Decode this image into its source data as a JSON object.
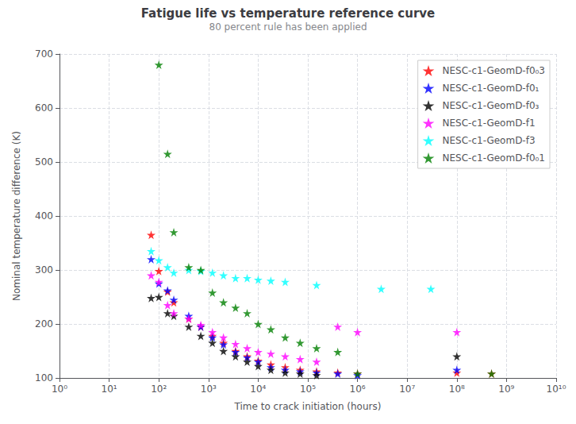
{
  "chart_data": {
    "type": "scatter",
    "title": "Fatigue life vs temperature reference curve",
    "subtitle": "80 percent rule has been applied",
    "xlabel": "Time to crack initiation (hours)",
    "ylabel": "Nominal temperature difference (K)",
    "log": "x",
    "xlim": [
      1,
      10000000000
    ],
    "xticks": [
      {
        "value": 1,
        "label": "10⁰"
      },
      {
        "value": 10,
        "label": "10¹"
      },
      {
        "value": 100,
        "label": "10²"
      },
      {
        "value": 1000,
        "label": "10³"
      },
      {
        "value": 10000,
        "label": "10⁴"
      },
      {
        "value": 100000,
        "label": "10⁵"
      },
      {
        "value": 1000000,
        "label": "10⁶"
      },
      {
        "value": 10000000,
        "label": "10⁷"
      },
      {
        "value": 100000000,
        "label": "10⁸"
      },
      {
        "value": 1000000000,
        "label": "10⁹"
      },
      {
        "value": 10000000000,
        "label": "10¹⁰"
      }
    ],
    "ylim": [
      100,
      700
    ],
    "yticks": [
      100,
      200,
      300,
      400,
      500,
      600,
      700
    ],
    "grid": true,
    "legend": "top-right",
    "marker": "star",
    "series": [
      {
        "name": "NESC-c1-GeomD-f0₀3",
        "color": "red",
        "x": [
          70,
          100,
          150,
          200,
          400,
          700,
          1200,
          2000,
          3500,
          6000,
          10000,
          18000,
          35000,
          70000,
          150000,
          400000,
          1000000,
          100000000,
          500000000
        ],
        "values": [
          365,
          298,
          260,
          240,
          210,
          195,
          178,
          165,
          150,
          140,
          132,
          125,
          120,
          115,
          112,
          110,
          108,
          110,
          108
        ]
      },
      {
        "name": "NESC-c1-GeomD-f0₁",
        "color": "blue",
        "x": [
          70,
          100,
          150,
          200,
          400,
          700,
          1200,
          2000,
          3500,
          6000,
          10000,
          18000,
          35000,
          70000,
          150000,
          400000,
          1000000,
          100000000
        ],
        "values": [
          320,
          275,
          262,
          245,
          215,
          195,
          175,
          162,
          148,
          138,
          130,
          120,
          115,
          112,
          110,
          108,
          105,
          115
        ]
      },
      {
        "name": "NESC-c1-GeomD-f0₃",
        "color": "black",
        "x": [
          70,
          100,
          150,
          200,
          400,
          700,
          1200,
          2000,
          3500,
          6000,
          10000,
          18000,
          35000,
          70000,
          150000,
          100000000
        ],
        "values": [
          248,
          250,
          220,
          215,
          195,
          178,
          165,
          150,
          140,
          130,
          122,
          115,
          110,
          108,
          105,
          140
        ]
      },
      {
        "name": "NESC-c1-GeomD-f1",
        "color": "magenta",
        "x": [
          70,
          100,
          150,
          200,
          400,
          700,
          1200,
          2000,
          3500,
          6000,
          10000,
          18000,
          35000,
          70000,
          150000,
          400000,
          1000000,
          100000000
        ],
        "values": [
          290,
          278,
          235,
          220,
          210,
          198,
          185,
          175,
          163,
          155,
          148,
          145,
          140,
          135,
          130,
          195,
          185,
          185
        ]
      },
      {
        "name": "NESC-c1-GeomD-f3",
        "color": "cyan",
        "x": [
          70,
          100,
          150,
          200,
          400,
          700,
          1200,
          2000,
          3500,
          6000,
          10000,
          18000,
          35000,
          150000,
          3000000,
          30000000
        ],
        "values": [
          335,
          318,
          305,
          295,
          300,
          298,
          295,
          290,
          285,
          285,
          282,
          280,
          278,
          272,
          265,
          265
        ]
      },
      {
        "name": "NESC-c1-GeomD-f0₀1",
        "color": "green",
        "x": [
          100,
          150,
          200,
          400,
          700,
          1200,
          2000,
          3500,
          6000,
          10000,
          18000,
          35000,
          70000,
          150000,
          400000,
          1000000,
          500000000
        ],
        "values": [
          680,
          515,
          370,
          305,
          300,
          258,
          240,
          230,
          220,
          200,
          190,
          175,
          165,
          155,
          148,
          108,
          108
        ]
      }
    ]
  }
}
